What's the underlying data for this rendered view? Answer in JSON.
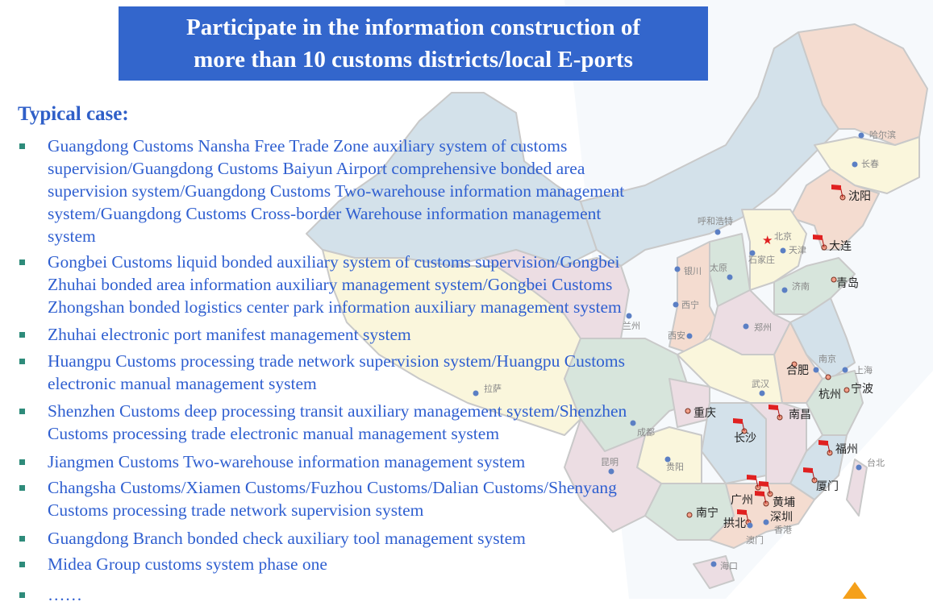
{
  "banner": {
    "line1": "Participate in the information construction of",
    "line2": "more than 10 customs districts/local E-ports"
  },
  "heading": "Typical case:",
  "items": [
    {
      "lines": [
        "Guangdong Customs Nansha Free Trade Zone auxiliary system of customs",
        "supervision/Guangdong Customs Baiyun Airport comprehensive bonded area",
        "supervision system/Guangdong Customs Two-warehouse information management",
        "system/Guangdong Customs Cross-border Warehouse information management",
        "system"
      ]
    },
    {
      "lines": [
        "Gongbei Customs liquid bonded  auxiliary system of customs supervision/Gongbei",
        "Zhuhai bonded area information auxiliary management system/Gongbei Customs",
        "Zhongshan bonded logistics center park information auxiliary management system"
      ]
    },
    {
      "lines": [
        "Zhuhai electronic port manifest management system"
      ]
    },
    {
      "lines": [
        "Huangpu Customs processing trade network supervision system/Huangpu Customs",
        "electronic manual management system"
      ]
    },
    {
      "lines": [
        "Shenzhen Customs deep processing transit auxiliary management system/Shenzhen",
        "Customs processing trade electronic manual management system"
      ]
    },
    {
      "lines": [
        "Jiangmen Customs Two-warehouse information management system"
      ]
    },
    {
      "lines": [
        "Changsha Customs/Xiamen Customs/Fuzhou Customs/Dalian Customs/Shenyang",
        "Customs processing trade network supervision system"
      ]
    },
    {
      "lines": [
        "Guangdong Branch bonded check auxiliary tool management system"
      ]
    },
    {
      "lines": [
        "Midea Group customs system phase one"
      ]
    },
    {
      "lines": [
        "……"
      ]
    }
  ],
  "colors": {
    "banner": "#3366cc",
    "text": "#2f5fd0",
    "bullet": "#2e8b7a",
    "flag": "#e02020"
  },
  "map": {
    "cities": [
      {
        "name": "哈尔滨",
        "flag": false,
        "big": false
      },
      {
        "name": "长春",
        "flag": false,
        "big": false
      },
      {
        "name": "沈阳",
        "flag": true,
        "big": true
      },
      {
        "name": "大连",
        "flag": true,
        "big": true
      },
      {
        "name": "呼和浩特",
        "flag": false,
        "big": false
      },
      {
        "name": "北京",
        "flag": false,
        "big": false,
        "capital": true
      },
      {
        "name": "天津",
        "flag": false,
        "big": false
      },
      {
        "name": "石家庄",
        "flag": false,
        "big": false
      },
      {
        "name": "太原",
        "flag": false,
        "big": false
      },
      {
        "name": "银川",
        "flag": false,
        "big": false
      },
      {
        "name": "济南",
        "flag": false,
        "big": false
      },
      {
        "name": "青岛",
        "flag": false,
        "big": true
      },
      {
        "name": "西宁",
        "flag": false,
        "big": false
      },
      {
        "name": "兰州",
        "flag": false,
        "big": false
      },
      {
        "name": "西安",
        "flag": false,
        "big": false
      },
      {
        "name": "郑州",
        "flag": false,
        "big": false
      },
      {
        "name": "南京",
        "flag": false,
        "big": false
      },
      {
        "name": "上海",
        "flag": false,
        "big": false
      },
      {
        "name": "合肥",
        "flag": false,
        "big": true
      },
      {
        "name": "杭州",
        "flag": false,
        "big": true
      },
      {
        "name": "宁波",
        "flag": false,
        "big": true
      },
      {
        "name": "武汉",
        "flag": false,
        "big": false
      },
      {
        "name": "拉萨",
        "flag": false,
        "big": false
      },
      {
        "name": "成都",
        "flag": false,
        "big": false
      },
      {
        "name": "重庆",
        "flag": false,
        "big": true
      },
      {
        "name": "南昌",
        "flag": true,
        "big": true
      },
      {
        "name": "长沙",
        "flag": true,
        "big": true
      },
      {
        "name": "福州",
        "flag": true,
        "big": true
      },
      {
        "name": "台北",
        "flag": false,
        "big": false
      },
      {
        "name": "昆明",
        "flag": false,
        "big": false
      },
      {
        "name": "贵阳",
        "flag": false,
        "big": false
      },
      {
        "name": "厦门",
        "flag": true,
        "big": true
      },
      {
        "name": "广州",
        "flag": true,
        "big": true
      },
      {
        "name": "黄埔",
        "flag": true,
        "big": true
      },
      {
        "name": "深圳",
        "flag": true,
        "big": true
      },
      {
        "name": "南宁",
        "flag": false,
        "big": true
      },
      {
        "name": "拱北",
        "flag": true,
        "big": true
      },
      {
        "name": "澳门",
        "flag": false,
        "big": false
      },
      {
        "name": "香港",
        "flag": false,
        "big": false
      },
      {
        "name": "海口",
        "flag": false,
        "big": false
      }
    ]
  }
}
